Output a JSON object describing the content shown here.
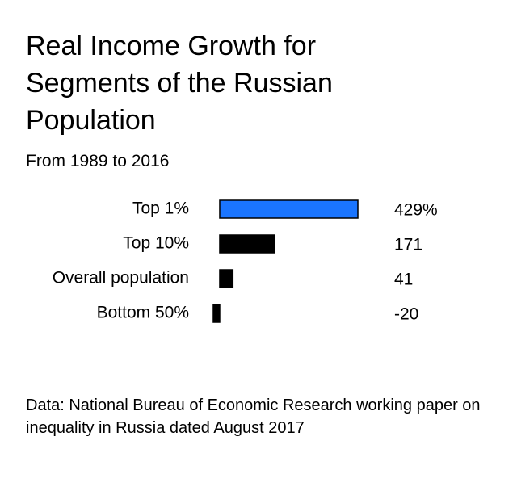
{
  "chart_data": {
    "type": "hbar",
    "title": "Real Income Growth for Segments of the Russian Population",
    "subtitle": "From 1989 to 2016",
    "categories": [
      "Top 1%",
      "Top 10%",
      "Overall population",
      "Bottom 50%"
    ],
    "values": [
      429,
      171,
      41,
      -20
    ],
    "value_labels": [
      "429%",
      "171",
      "41",
      "-20"
    ],
    "colors": [
      "#1a75ff",
      "#000000",
      "#000000",
      "#000000"
    ],
    "source": "Data: National Bureau of Economic Research working paper on inequality in Russia dated August 2017"
  }
}
